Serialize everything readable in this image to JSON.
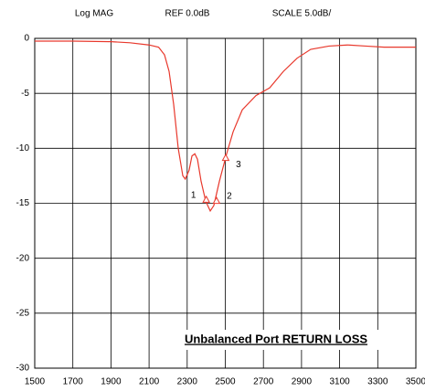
{
  "chart_data": {
    "type": "line",
    "annotations": [
      "Log MAG",
      "REF 0.0dB",
      "SCALE 5.0dB/"
    ],
    "title": "Unbalanced Port RETURN LOSS",
    "x": [
      1500,
      1700,
      1900,
      2000,
      2100,
      2150,
      2181,
      2205,
      2229,
      2253,
      2277,
      2290,
      2310,
      2325,
      2340,
      2354,
      2373,
      2397,
      2421,
      2440,
      2469,
      2507,
      2541,
      2589,
      2661,
      2733,
      2805,
      2877,
      2948,
      3044,
      3141,
      3237,
      3333,
      3500
    ],
    "series": [
      {
        "color": "#e8382c",
        "values": [
          -0.25,
          -0.25,
          -0.3,
          -0.4,
          -0.6,
          -0.8,
          -1.5,
          -3,
          -6,
          -10,
          -12.5,
          -12.8,
          -12,
          -10.7,
          -10.5,
          -11,
          -13,
          -14.8,
          -15.7,
          -15.2,
          -13,
          -10.5,
          -8.5,
          -6.5,
          -5.2,
          -4.5,
          -3,
          -1.8,
          -1.0,
          -0.7,
          -0.6,
          -0.7,
          -0.8,
          -0.8
        ]
      }
    ],
    "markers": [
      {
        "label": "1",
        "x": 2400,
        "y": -14.7
      },
      {
        "label": "2",
        "x": 2454,
        "y": -14.8
      },
      {
        "label": "3",
        "x": 2502,
        "y": -10.9
      }
    ],
    "xlim": [
      1500,
      3500
    ],
    "xticks": [
      1500,
      1700,
      1900,
      2100,
      2300,
      2500,
      2700,
      2900,
      3100,
      3300,
      3500
    ],
    "ylim": [
      -30,
      0
    ],
    "yticks": [
      0,
      -5,
      -10,
      -15,
      -20,
      -25,
      -30
    ],
    "grid": true
  }
}
